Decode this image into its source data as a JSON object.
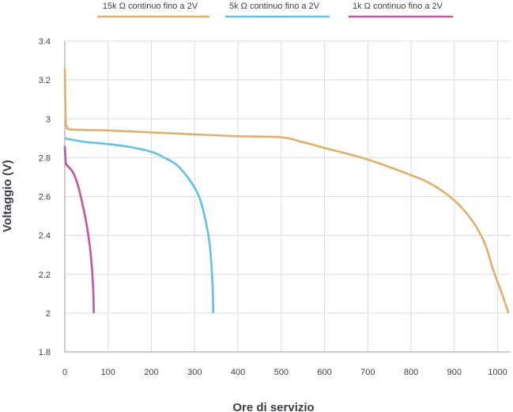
{
  "chart_data": {
    "type": "line",
    "xlabel": "Ore di servizio",
    "ylabel": "Voltaggio (V)",
    "xlim": [
      0,
      1030
    ],
    "ylim": [
      1.8,
      3.4
    ],
    "x_ticks": [
      0,
      100,
      200,
      300,
      400,
      500,
      600,
      700,
      800,
      900,
      1000
    ],
    "y_ticks": [
      1.8,
      2,
      2.2,
      2.4,
      2.6,
      2.8,
      3,
      3.2,
      3.4
    ],
    "grid": true,
    "legend_position": "top",
    "series": [
      {
        "name": "15k Ω continuo fino a 2V",
        "color": "#e0b066",
        "points": [
          [
            0,
            3.26
          ],
          [
            2,
            3.0
          ],
          [
            5,
            2.96
          ],
          [
            15,
            2.945
          ],
          [
            100,
            2.94
          ],
          [
            200,
            2.93
          ],
          [
            300,
            2.92
          ],
          [
            400,
            2.91
          ],
          [
            500,
            2.905
          ],
          [
            550,
            2.88
          ],
          [
            600,
            2.85
          ],
          [
            700,
            2.79
          ],
          [
            800,
            2.71
          ],
          [
            850,
            2.66
          ],
          [
            900,
            2.58
          ],
          [
            940,
            2.48
          ],
          [
            970,
            2.36
          ],
          [
            990,
            2.22
          ],
          [
            1010,
            2.1
          ],
          [
            1025,
            2.0
          ]
        ]
      },
      {
        "name": "5k Ω continuo fino a 2V",
        "color": "#5bc4e6",
        "points": [
          [
            0,
            2.9
          ],
          [
            10,
            2.895
          ],
          [
            50,
            2.88
          ],
          [
            100,
            2.87
          ],
          [
            150,
            2.855
          ],
          [
            200,
            2.83
          ],
          [
            230,
            2.8
          ],
          [
            260,
            2.76
          ],
          [
            290,
            2.68
          ],
          [
            310,
            2.6
          ],
          [
            325,
            2.48
          ],
          [
            335,
            2.35
          ],
          [
            340,
            2.2
          ],
          [
            342,
            2.1
          ],
          [
            343,
            2.0
          ]
        ]
      },
      {
        "name": "1k Ω continuo fino a 2V",
        "color": "#c552a3",
        "points": [
          [
            0,
            2.86
          ],
          [
            2,
            2.78
          ],
          [
            5,
            2.76
          ],
          [
            10,
            2.75
          ],
          [
            20,
            2.72
          ],
          [
            30,
            2.66
          ],
          [
            40,
            2.57
          ],
          [
            50,
            2.46
          ],
          [
            58,
            2.34
          ],
          [
            63,
            2.22
          ],
          [
            66,
            2.1
          ],
          [
            67,
            2.0
          ]
        ]
      }
    ]
  }
}
